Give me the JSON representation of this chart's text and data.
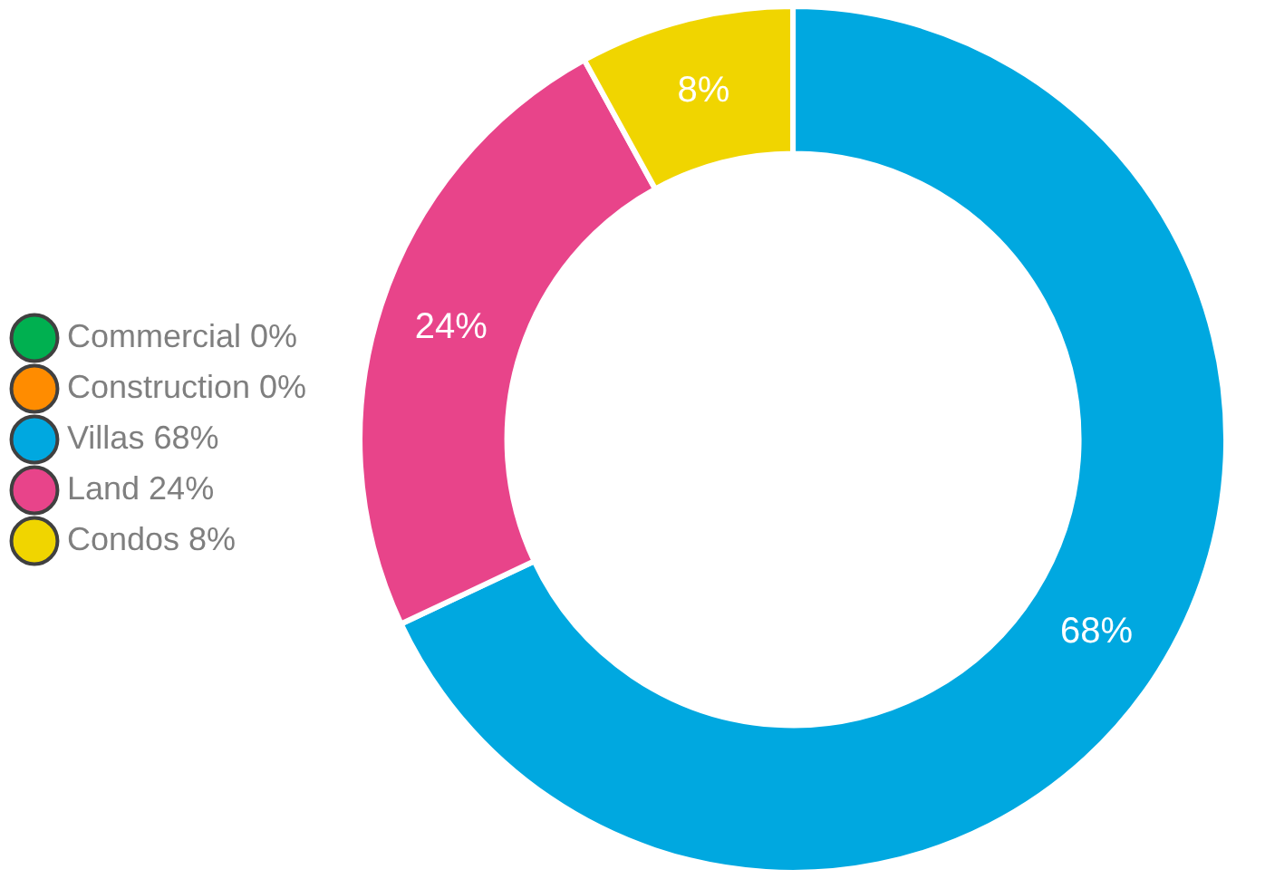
{
  "chart_data": {
    "type": "donut",
    "categories": [
      "Commercial 0%",
      "Construction 0%",
      "Villas 68%",
      "Land 24%",
      "Condos 8%"
    ],
    "values": [
      0,
      0,
      68,
      24,
      8
    ],
    "colors": [
      "#00b050",
      "#ff8c00",
      "#00a8e0",
      "#e8448a",
      "#f0d500"
    ],
    "value_labels": [
      null,
      null,
      "68%",
      "24%",
      "8%"
    ],
    "legend": "left"
  }
}
